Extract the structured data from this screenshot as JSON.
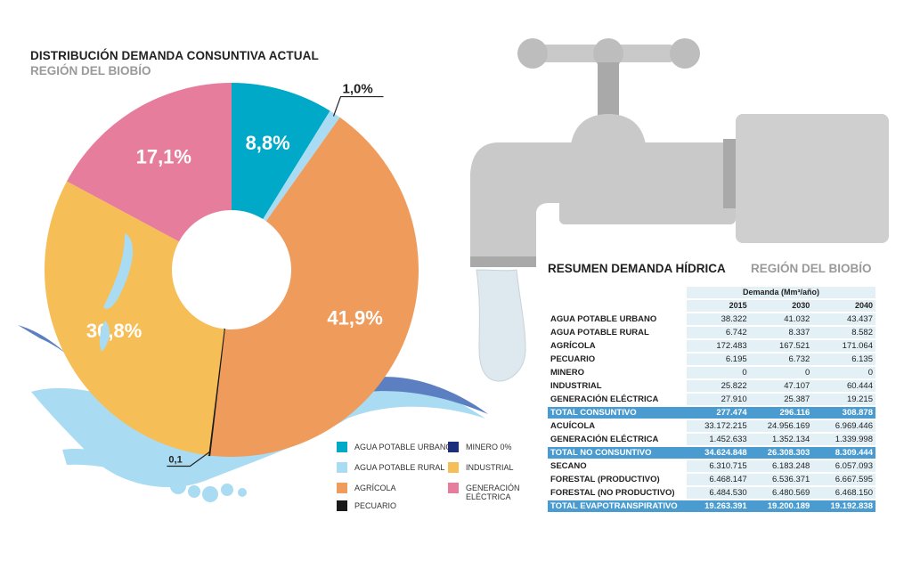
{
  "chart_data": [
    {
      "type": "pie",
      "title": "DISTRIBUCIÓN DEMANDA CONSUNTIVA ACTUAL",
      "subtitle": "REGIÓN DEL BIOBÍO",
      "slices": [
        {
          "name": "AGUA POTABLE URBANO",
          "value": 8.8,
          "label": "8,8%",
          "color": "#00a9c7"
        },
        {
          "name": "AGUA POTABLE RURAL",
          "value": 1.0,
          "label": "1,0%",
          "color": "#a9dcf2"
        },
        {
          "name": "AGRÍCOLA",
          "value": 41.9,
          "label": "41,9%",
          "color": "#ee9b5c"
        },
        {
          "name": "PECUARIO",
          "value": 0.1,
          "label": "0,1",
          "color": "#1a1a1a"
        },
        {
          "name": "MINERO 0%",
          "value": 0.0,
          "label": "",
          "color": "#1c2e7d"
        },
        {
          "name": "INDUSTRIAL",
          "value": 30.8,
          "label": "30,8%",
          "color": "#f6be57"
        },
        {
          "name": "GENERACIÓN ELÉCTRICA",
          "value": 17.1,
          "label": "17,1%",
          "color": "#e77d9c"
        }
      ],
      "legend_placement": "bottom",
      "legend": [
        {
          "label": "AGUA POTABLE URBANO",
          "color": "#00a9c7"
        },
        {
          "label": "MINERO 0%",
          "color": "#1c2e7d"
        },
        {
          "label": "AGUA POTABLE RURAL",
          "color": "#a9dcf2"
        },
        {
          "label": "INDUSTRIAL",
          "color": "#f6be57"
        },
        {
          "label": "AGRÍCOLA",
          "color": "#ee9b5c"
        },
        {
          "label": "GENERACIÓN ELÉCTRICA",
          "color": "#e77d9c"
        },
        {
          "label": "PECUARIO",
          "color": "#1a1a1a"
        }
      ]
    },
    {
      "type": "table",
      "title": "RESUMEN DEMANDA HÍDRICA",
      "subtitle": "REGIÓN DEL BIOBÍO",
      "unit_label": "Demanda (Mm³/año)",
      "columns": [
        "2015",
        "2030",
        "2040"
      ],
      "rows": [
        {
          "label": "AGUA POTABLE URBANO",
          "values": [
            "38.322",
            "41.032",
            "43.437"
          ],
          "total": false
        },
        {
          "label": "AGUA POTABLE RURAL",
          "values": [
            "6.742",
            "8.337",
            "8.582"
          ],
          "total": false
        },
        {
          "label": "AGRÍCOLA",
          "values": [
            "172.483",
            "167.521",
            "171.064"
          ],
          "total": false
        },
        {
          "label": "PECUARIO",
          "values": [
            "6.195",
            "6.732",
            "6.135"
          ],
          "total": false
        },
        {
          "label": "MINERO",
          "values": [
            "0",
            "0",
            "0"
          ],
          "total": false
        },
        {
          "label": "INDUSTRIAL",
          "values": [
            "25.822",
            "47.107",
            "60.444"
          ],
          "total": false
        },
        {
          "label": "GENERACIÓN ELÉCTRICA",
          "values": [
            "27.910",
            "25.387",
            "19.215"
          ],
          "total": false
        },
        {
          "label": "TOTAL CONSUNTIVO",
          "values": [
            "277.474",
            "296.116",
            "308.878"
          ],
          "total": true
        },
        {
          "label": "ACUÍCOLA",
          "values": [
            "33.172.215",
            "24.956.169",
            "6.969.446"
          ],
          "total": false
        },
        {
          "label": "GENERACIÓN ELÉCTRICA",
          "values": [
            "1.452.633",
            "1.352.134",
            "1.339.998"
          ],
          "total": false
        },
        {
          "label": "TOTAL NO CONSUNTIVO",
          "values": [
            "34.624.848",
            "26.308.303",
            "8.309.444"
          ],
          "total": true
        },
        {
          "label": "SECANO",
          "values": [
            "6.310.715",
            "6.183.248",
            "6.057.093"
          ],
          "total": false
        },
        {
          "label": "FORESTAL (PRODUCTIVO)",
          "values": [
            "6.468.147",
            "6.536.371",
            "6.667.595"
          ],
          "total": false
        },
        {
          "label": "FORESTAL (NO PRODUCTIVO)",
          "values": [
            "6.484.530",
            "6.480.569",
            "6.468.150"
          ],
          "total": false
        },
        {
          "label": "TOTAL EVAPOTRANSPIRATIVO",
          "values": [
            "19.263.391",
            "19.200.189",
            "19.192.838"
          ],
          "total": true
        }
      ]
    }
  ],
  "colors": {
    "faucet": "#c9c9c9",
    "faucet_dark": "#a9a9a9",
    "water": "#a9dcf2",
    "table_total": "#4a9bcf",
    "table_cell": "#e3f1f7"
  }
}
